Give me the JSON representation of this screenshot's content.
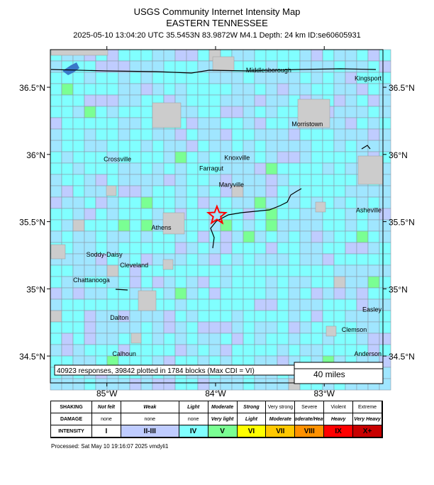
{
  "header": {
    "title": "USGS Community Internet Intensity Map",
    "region": "EASTERN TENNESSEE",
    "event_line": "2025-05-10 13:04:20 UTC 35.5453N 83.9872W M4.1 Depth: 24 km ID:se60605931"
  },
  "map": {
    "lat_labels": [
      "36.5°N",
      "36°N",
      "35.5°N",
      "35°N",
      "34.5°N"
    ],
    "lat_values": [
      36.5,
      36.0,
      35.5,
      35.0,
      34.5
    ],
    "lon_labels": [
      "85°W",
      "84°W",
      "83°W"
    ],
    "lon_values": [
      -85,
      -84,
      -83
    ],
    "epicenter": {
      "lat": 35.5453,
      "lon": -83.9872
    },
    "cities": [
      {
        "name": "Middlesborough",
        "lat": 36.61,
        "lon": -83.72
      },
      {
        "name": "Kingsport",
        "lat": 36.55,
        "lon": -82.56
      },
      {
        "name": "Morristown",
        "lat": 36.21,
        "lon": -83.3
      },
      {
        "name": "Knoxville",
        "lat": 35.96,
        "lon": -83.92
      },
      {
        "name": "Crossville",
        "lat": 35.95,
        "lon": -85.03
      },
      {
        "name": "Farragut",
        "lat": 35.88,
        "lon": -84.15
      },
      {
        "name": "Maryville",
        "lat": 35.76,
        "lon": -83.97
      },
      {
        "name": "Asheville",
        "lat": 35.57,
        "lon": -82.55
      },
      {
        "name": "Athens",
        "lat": 35.44,
        "lon": -84.59
      },
      {
        "name": "Soddy-Daisy",
        "lat": 35.24,
        "lon": -85.19
      },
      {
        "name": "Cleveland",
        "lat": 35.16,
        "lon": -84.88
      },
      {
        "name": "Chattanooga",
        "lat": 35.05,
        "lon": -85.31
      },
      {
        "name": "Dalton",
        "lat": 34.77,
        "lon": -84.97
      },
      {
        "name": "Easley",
        "lat": 34.83,
        "lon": -82.6
      },
      {
        "name": "Clemson",
        "lat": 34.68,
        "lon": -82.84
      },
      {
        "name": "Anderson",
        "lat": 34.5,
        "lon": -82.65
      },
      {
        "name": "Calhoun",
        "lat": 34.5,
        "lon": -84.95
      }
    ],
    "summary": "40923 responses, 39842 plotted in 1784 blocks (Max CDI = VI)",
    "scale_label": "40 miles",
    "colors": {
      "cdi_1": "#ffffff",
      "cdi_2": "#bfccff",
      "cdi_3": "#a0e6ff",
      "cdi_4": "#80ffff",
      "cdi_5": "#7aff93",
      "cdi_6": "#ffff00",
      "cdi_7": "#ffc800",
      "cdi_8": "#ff9100",
      "cdi_9": "#ff0000",
      "cdi_10": "#c80000",
      "terrain": "#cccccc",
      "water": "#3a78c8",
      "epicenter_star": "#ff0000"
    }
  },
  "legend": {
    "row_labels": [
      "SHAKING",
      "DAMAGE",
      "INTENSITY"
    ],
    "shaking": [
      "Not felt",
      "Weak",
      "Light",
      "Moderate",
      "Strong",
      "Very strong",
      "Severe",
      "Violent",
      "Extreme"
    ],
    "damage": [
      "none",
      "none",
      "none",
      "Very light",
      "Light",
      "Moderate",
      "Moderate/Heavy",
      "Heavy",
      "Very Heavy"
    ],
    "intensity": [
      "I",
      "II-III",
      "IV",
      "V",
      "VI",
      "VII",
      "VIII",
      "IX",
      "X+"
    ],
    "intensity_colors": [
      "#ffffff",
      "#bfccff",
      "#80ffff",
      "#7aff93",
      "#ffff00",
      "#ffc800",
      "#ff9100",
      "#ff0000",
      "#c80000"
    ]
  },
  "footer": {
    "processed": "Processed: Sat May 10 19:16:07 2025 vmdyli1"
  }
}
